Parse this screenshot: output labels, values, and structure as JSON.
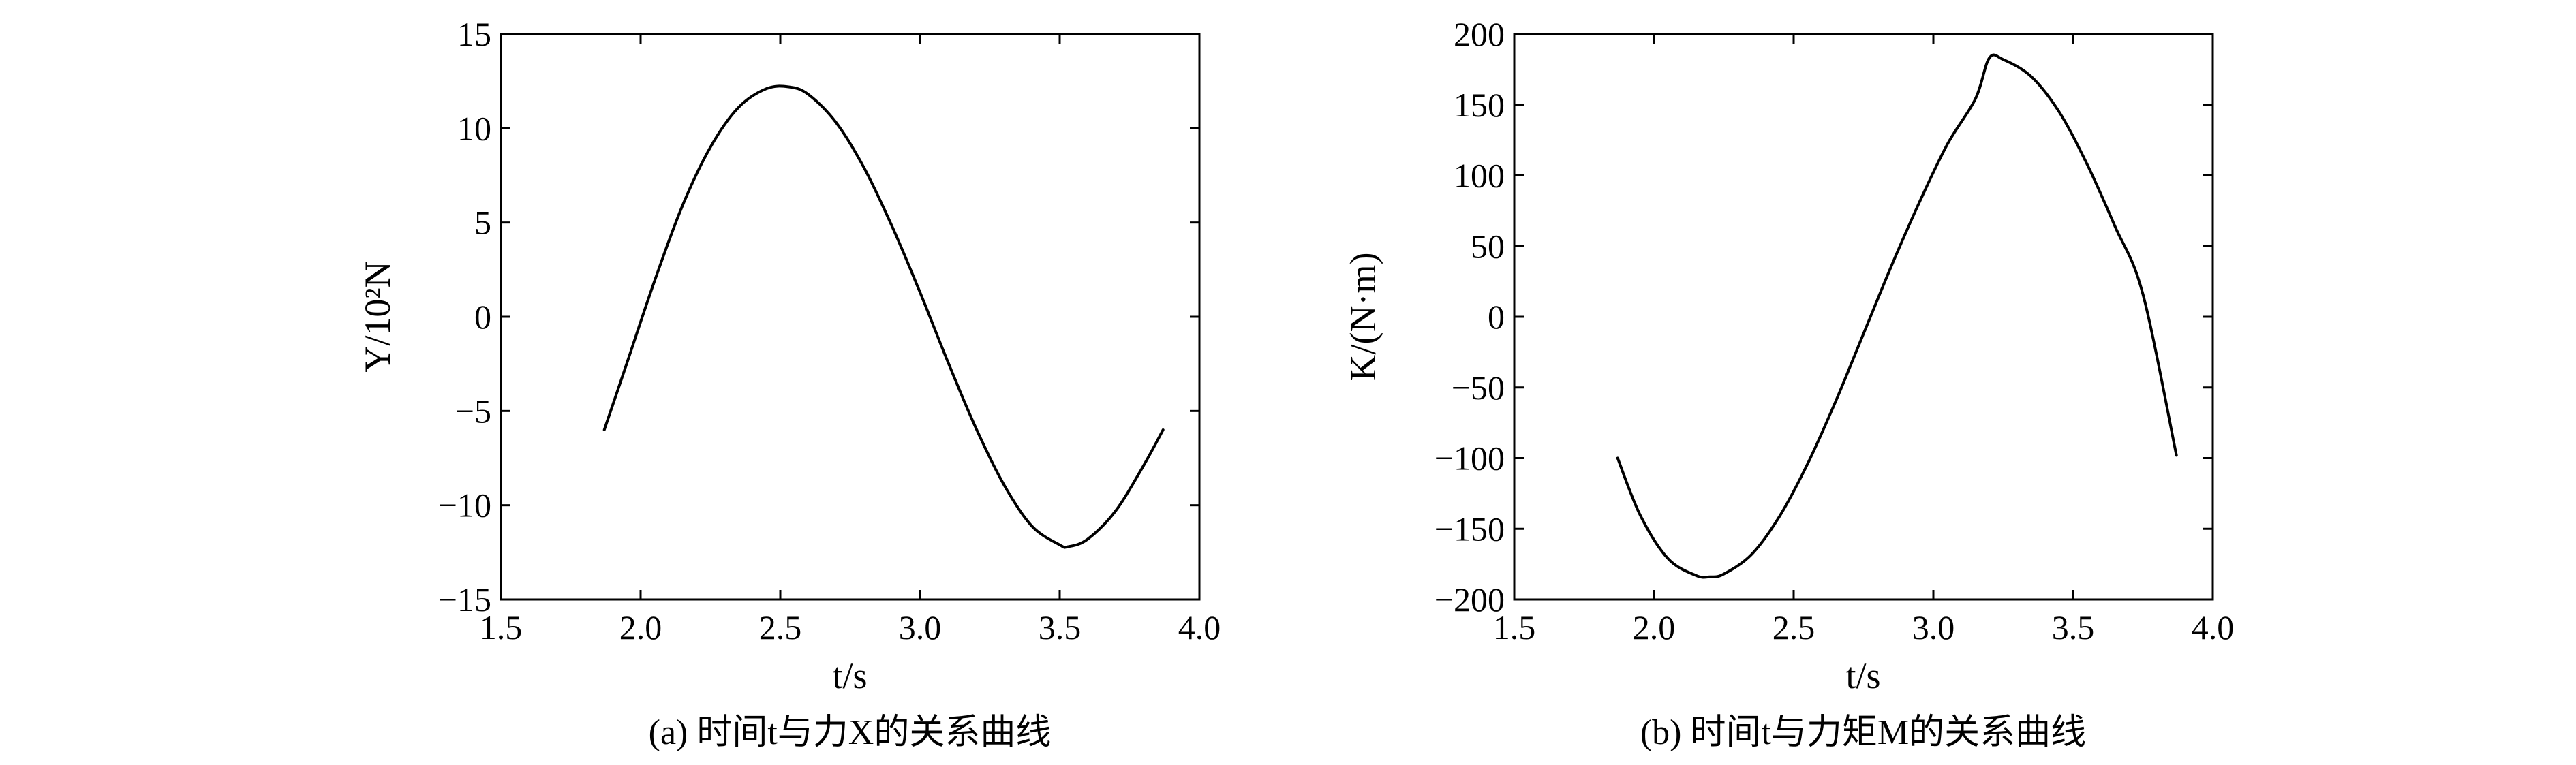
{
  "chart_data": [
    {
      "type": "line",
      "caption": "(a) 时间t与力X的关系曲线",
      "xlabel": "t/s",
      "ylabel": "Y/10²N",
      "xlim": [
        1.5,
        4.0
      ],
      "ylim": [
        -15,
        15
      ],
      "xticks": [
        1.5,
        2.0,
        2.5,
        3.0,
        3.5,
        4.0
      ],
      "xtick_labels": [
        "1.5",
        "2.0",
        "2.5",
        "3.0",
        "3.5",
        "4.0"
      ],
      "yticks": [
        -15,
        -10,
        -5,
        0,
        5,
        10,
        15
      ],
      "ytick_labels": [
        "−15",
        "−10",
        "−5",
        "0",
        "5",
        "10",
        "15"
      ],
      "grid": false,
      "series": [
        {
          "color": "#000000",
          "x": [
            1.87,
            1.95,
            2.05,
            2.15,
            2.25,
            2.35,
            2.45,
            2.53,
            2.6,
            2.7,
            2.8,
            2.9,
            3.0,
            3.1,
            3.2,
            3.3,
            3.4,
            3.5,
            3.53,
            3.6,
            3.7,
            3.8,
            3.87
          ],
          "y": [
            -6.0,
            -2.5,
            1.9,
            5.9,
            9.0,
            11.1,
            12.1,
            12.2,
            11.8,
            10.3,
            7.9,
            4.8,
            1.3,
            -2.4,
            -5.9,
            -8.9,
            -11.1,
            -12.1,
            -12.2,
            -11.8,
            -10.3,
            -7.9,
            -6.0
          ]
        }
      ]
    },
    {
      "type": "line",
      "caption": "(b) 时间t与力矩M的关系曲线",
      "xlabel": "t/s",
      "ylabel": "K/(N·m)",
      "xlim": [
        1.5,
        4.0
      ],
      "ylim": [
        -200,
        200
      ],
      "xticks": [
        1.5,
        2.0,
        2.5,
        3.0,
        3.5,
        4.0
      ],
      "xtick_labels": [
        "1.5",
        "2.0",
        "2.5",
        "3.0",
        "3.5",
        "4.0"
      ],
      "yticks": [
        -200,
        -150,
        -100,
        -50,
        0,
        50,
        100,
        150,
        200
      ],
      "ytick_labels": [
        "−200",
        "−150",
        "−100",
        "−50",
        "0",
        "50",
        "100",
        "150",
        "200"
      ],
      "grid": false,
      "series": [
        {
          "color": "#000000",
          "x": [
            1.87,
            1.95,
            2.05,
            2.15,
            2.2,
            2.25,
            2.35,
            2.45,
            2.55,
            2.65,
            2.75,
            2.85,
            2.95,
            3.05,
            3.15,
            3.2,
            3.25,
            3.35,
            3.45,
            3.55,
            3.65,
            3.75,
            3.87
          ],
          "y": [
            -100,
            -140,
            -171,
            -183,
            -184,
            -182,
            -168,
            -141,
            -104,
            -60,
            -12,
            36,
            81,
            122,
            154,
            183,
            182,
            170,
            145,
            108,
            64,
            16,
            -98
          ]
        }
      ]
    }
  ]
}
